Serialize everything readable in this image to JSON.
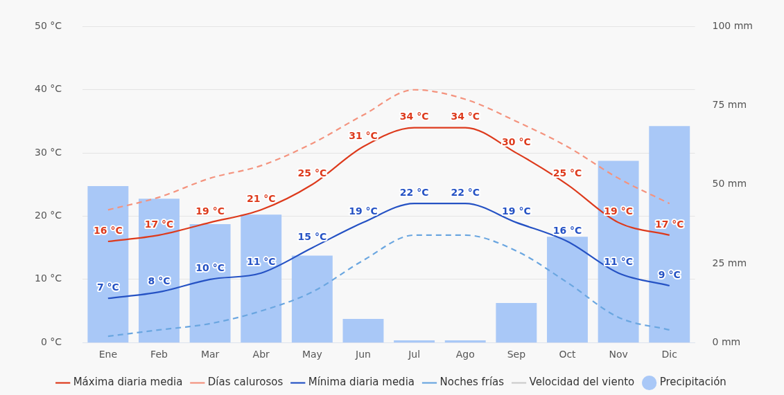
{
  "chart_data": {
    "type": "line",
    "categories": [
      "Ene",
      "Feb",
      "Mar",
      "Abr",
      "May",
      "Jun",
      "Jul",
      "Ago",
      "Sep",
      "Oct",
      "Nov",
      "Dic"
    ],
    "series": [
      {
        "name": "Precipitación",
        "type": "bar",
        "axis": "y2",
        "color": "#a9c8f7",
        "values": [
          49.5,
          45.5,
          37.5,
          40.5,
          27.5,
          7.5,
          0.7,
          0.7,
          12.5,
          33.5,
          57.5,
          68.5
        ]
      },
      {
        "name": "Máxima diaria media",
        "color": "#dd3a1c",
        "line_style": "solid",
        "values": [
          16,
          17,
          19,
          21,
          25,
          31,
          34,
          34,
          30,
          25,
          19,
          17
        ],
        "value_labels": [
          "16 °C",
          "17 °C",
          "19 °C",
          "21 °C",
          "25 °C",
          "31 °C",
          "34 °C",
          "34 °C",
          "30 °C",
          "25 °C",
          "19 °C",
          "17 °C"
        ]
      },
      {
        "name": "Días calurosos",
        "color": "#f4937e",
        "line_style": "dashed",
        "values": [
          21,
          23,
          26,
          28,
          31.5,
          36,
          40,
          38.5,
          35,
          31,
          26,
          22
        ]
      },
      {
        "name": "Mínima diaria media",
        "color": "#2552c4",
        "line_style": "solid",
        "values": [
          7,
          8,
          10,
          11,
          15,
          19,
          22,
          22,
          19,
          16,
          11,
          9
        ],
        "value_labels": [
          "7 °C",
          "8 °C",
          "10 °C",
          "11 °C",
          "15 °C",
          "19 °C",
          "22 °C",
          "22 °C",
          "19 °C",
          "16 °C",
          "11 °C",
          "9 °C"
        ]
      },
      {
        "name": "Noches frías",
        "color": "#6aa6e0",
        "line_style": "dashed",
        "values": [
          1,
          2,
          3,
          5,
          8,
          13,
          17,
          17,
          14.5,
          9.5,
          4,
          2
        ]
      },
      {
        "name": "Velocidad del viento",
        "color": "#cccccc",
        "line_style": "solid",
        "values": [
          null,
          null,
          null,
          null,
          null,
          null,
          null,
          null,
          null,
          null,
          null,
          null
        ]
      }
    ],
    "ylim": [
      0,
      50
    ],
    "yticks": [
      {
        "value": 0,
        "label": "0 °C"
      },
      {
        "value": 10,
        "label": "10 °C"
      },
      {
        "value": 20,
        "label": "20 °C"
      },
      {
        "value": 30,
        "label": "30 °C"
      },
      {
        "value": 40,
        "label": "40 °C"
      },
      {
        "value": 50,
        "label": "50 °C"
      }
    ],
    "y2lim": [
      0,
      100
    ],
    "y2ticks": [
      {
        "value": 0,
        "label": "0 mm"
      },
      {
        "value": 25,
        "label": "25 mm"
      },
      {
        "value": 50,
        "label": "50 mm"
      },
      {
        "value": 75,
        "label": "75 mm"
      },
      {
        "value": 100,
        "label": "100 mm"
      }
    ],
    "grid": "y",
    "legend": "bottom"
  }
}
